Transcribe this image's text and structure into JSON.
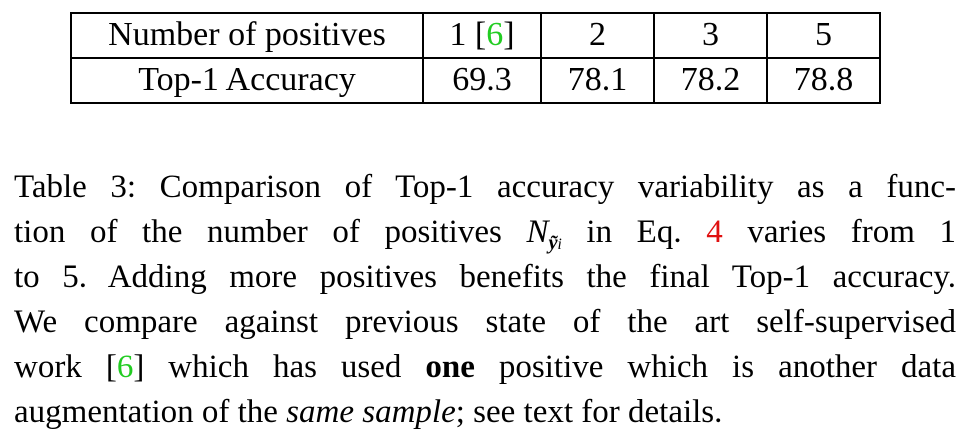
{
  "table": {
    "header_label": "Number of positives",
    "columns": [
      {
        "value": "1",
        "cite_open": " [",
        "cite": "6",
        "cite_close": "]"
      },
      {
        "value": "2"
      },
      {
        "value": "3"
      },
      {
        "value": "5"
      }
    ],
    "row_label": "Top-1 Accuracy",
    "values": [
      "69.3",
      "78.1",
      "78.2",
      "78.8"
    ]
  },
  "caption": {
    "l1": "Table 3: Comparison of Top-1 accuracy variability as a func-",
    "l2_a": "tion of the number of positives ",
    "l2_math": "N",
    "l2_sub": "ỹ",
    "l2_subsub": "i",
    "l2_b": " in Eq. ",
    "l2_ref": "4",
    "l2_c": " varies from 1",
    "l3": "to 5. Adding more positives benefits the final Top-1 accuracy.",
    "l4": "We compare against previous state of the art self-supervised",
    "l5_a": "work [",
    "l5_cite": "6",
    "l5_b": "] which has used ",
    "l5_bold": "one",
    "l5_c": " positive which is another data",
    "l6_a": "augmentation of the ",
    "l6_italic": "same sample",
    "l6_b": "; see text for details."
  }
}
